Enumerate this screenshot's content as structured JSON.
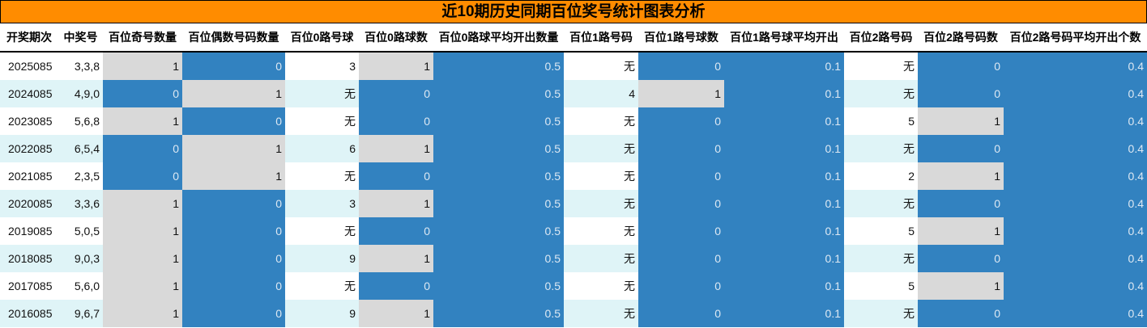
{
  "title": "近10期历史同期百位奖号统计图表分析",
  "colors": {
    "title_bg": "#ff8c00",
    "blue": "#3282c0",
    "gray": "#d9d9d9",
    "alt_row": "#dff4f7"
  },
  "headers": [
    "开奖期次",
    "中奖号",
    "百位奇号数量",
    "百位偶数号码数量",
    "百位0路号球",
    "百位0路球数",
    "百位0路球平均开出数量",
    "百位1路号码",
    "百位1路号球数",
    "百位1路号球平均开出",
    "百位2路号码",
    "百位2路号码数",
    "百位2路号码平均开出个数"
  ],
  "rows": [
    [
      "2025085",
      "3,3,8",
      "1",
      "0",
      "3",
      "1",
      "0.5",
      "无",
      "0",
      "0.1",
      "无",
      "0",
      "0.4"
    ],
    [
      "2024085",
      "4,9,0",
      "0",
      "1",
      "无",
      "0",
      "0.5",
      "4",
      "1",
      "0.1",
      "无",
      "0",
      "0.4"
    ],
    [
      "2023085",
      "5,6,8",
      "1",
      "0",
      "无",
      "0",
      "0.5",
      "无",
      "0",
      "0.1",
      "5",
      "1",
      "0.4"
    ],
    [
      "2022085",
      "6,5,4",
      "0",
      "1",
      "6",
      "1",
      "0.5",
      "无",
      "0",
      "0.1",
      "无",
      "0",
      "0.4"
    ],
    [
      "2021085",
      "2,3,5",
      "0",
      "1",
      "无",
      "0",
      "0.5",
      "无",
      "0",
      "0.1",
      "2",
      "1",
      "0.4"
    ],
    [
      "2020085",
      "3,3,6",
      "1",
      "0",
      "3",
      "1",
      "0.5",
      "无",
      "0",
      "0.1",
      "无",
      "0",
      "0.4"
    ],
    [
      "2019085",
      "5,0,5",
      "1",
      "0",
      "无",
      "0",
      "0.5",
      "无",
      "0",
      "0.1",
      "5",
      "1",
      "0.4"
    ],
    [
      "2018085",
      "9,0,3",
      "1",
      "0",
      "9",
      "1",
      "0.5",
      "无",
      "0",
      "0.1",
      "无",
      "0",
      "0.4"
    ],
    [
      "2017085",
      "5,6,0",
      "1",
      "0",
      "无",
      "0",
      "0.5",
      "无",
      "0",
      "0.1",
      "5",
      "1",
      "0.4"
    ],
    [
      "2016085",
      "9,6,7",
      "1",
      "0",
      "9",
      "1",
      "0.5",
      "无",
      "0",
      "0.1",
      "无",
      "0",
      "0.4"
    ]
  ]
}
